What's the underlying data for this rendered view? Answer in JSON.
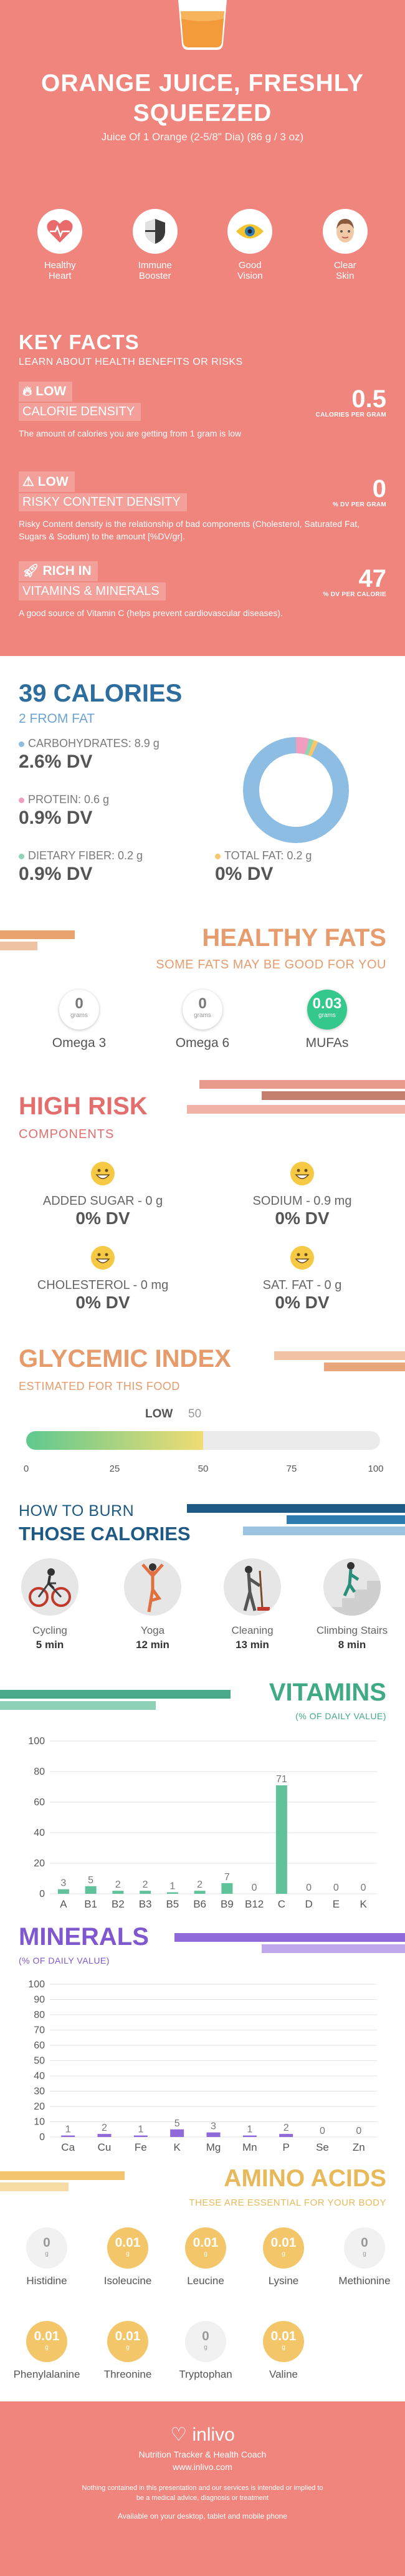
{
  "header": {
    "title_line1": "ORANGE JUICE, FRESHLY",
    "title_line2": "SQUEEZED",
    "subtitle": "Juice Of 1 Orange (2-5/8\" Dia) (86 g / 3 oz)"
  },
  "benefits": [
    {
      "line1": "Healthy",
      "line2": "Heart",
      "icon": "heart-rate-icon"
    },
    {
      "line1": "Immune",
      "line2": "Booster",
      "icon": "shield-icon"
    },
    {
      "line1": "Good",
      "line2": "Vision",
      "icon": "eye-icon"
    },
    {
      "line1": "Clear",
      "line2": "Skin",
      "icon": "skin-icon"
    }
  ],
  "key_facts": {
    "title": "KEY FACTS",
    "subtitle": "LEARN ABOUT HEALTH BENEFITS OR RISKS",
    "facts": [
      {
        "badge": "LOW",
        "label": "CALORIE DENSITY",
        "value": "0.5",
        "unit": "CALORIES PER GRAM",
        "desc": "The amount of calories you are getting from 1 gram is low"
      },
      {
        "badge": "LOW",
        "label": "RISKY CONTENT DENSITY",
        "value": "0",
        "unit": "% DV PER GRAM",
        "desc": "Risky Content density is the relationship of bad components (Cholesterol, Saturated Fat, Sugars & Sodium) to the amount [%DV/gr]."
      },
      {
        "badge": "RICH IN",
        "label": "VITAMINS & MINERALS",
        "value": "47",
        "unit": "% DV PER CALORIE",
        "desc": "A good source of Vitamin C (helps prevent cardiovascular diseases)."
      }
    ]
  },
  "calories": {
    "title": "39 CALORIES",
    "subtitle": "2 FROM FAT",
    "carbs": {
      "label": "CARBOHYDRATES: 8.9 g",
      "dv": "2.6% DV",
      "color": "#8ebde3"
    },
    "protein": {
      "label": "PROTEIN: 0.6 g",
      "dv": "0.9% DV",
      "color": "#f09ec0"
    },
    "fiber": {
      "label": "DIETARY FIBER: 0.2 g",
      "dv": "0.9% DV",
      "color": "#8cd6b5"
    },
    "fat": {
      "label": "TOTAL FAT: 0.2 g",
      "dv": "0% DV",
      "color": "#f7c86b"
    }
  },
  "fats": {
    "title": "HEALTHY FATS",
    "subtitle": "SOME FATS MAY BE GOOD FOR YOU",
    "items": [
      {
        "value": "0",
        "unit": "grams",
        "name": "Omega 3"
      },
      {
        "value": "0",
        "unit": "grams",
        "name": "Omega 6"
      },
      {
        "value": "0.03",
        "unit": "grams",
        "name": "MUFAs"
      }
    ]
  },
  "risk": {
    "title": "HIGH RISK",
    "subtitle": "COMPONENTS",
    "items": [
      {
        "label": "ADDED SUGAR - 0 g",
        "dv": "0% DV"
      },
      {
        "label": "SODIUM - 0.9 mg",
        "dv": "0% DV"
      },
      {
        "label": "CHOLESTEROL - 0 mg",
        "dv": "0% DV"
      },
      {
        "label": "SAT. FAT - 0 g",
        "dv": "0% DV"
      }
    ]
  },
  "glycemic": {
    "title": "GLYCEMIC INDEX",
    "subtitle": "ESTIMATED FOR THIS FOOD",
    "level": "LOW",
    "value": "50",
    "value_num": 50,
    "ticks": [
      "0",
      "25",
      "50",
      "75",
      "100"
    ]
  },
  "burn": {
    "title1": "HOW TO BURN",
    "title2": "THOSE CALORIES",
    "activities": [
      {
        "name": "Cycling",
        "time": "5 min",
        "icon": "cycling-icon"
      },
      {
        "name": "Yoga",
        "time": "12 min",
        "icon": "yoga-icon"
      },
      {
        "name": "Cleaning",
        "time": "13 min",
        "icon": "cleaning-icon"
      },
      {
        "name": "Climbing Stairs",
        "time": "8 min",
        "icon": "stairs-icon"
      }
    ]
  },
  "chart_data": [
    {
      "type": "bar",
      "title": "VITAMINS",
      "subtitle": "(% OF DAILY VALUE)",
      "categories": [
        "A",
        "B1",
        "B2",
        "B3",
        "B5",
        "B6",
        "B9",
        "B12",
        "C",
        "D",
        "E",
        "K"
      ],
      "values": [
        3,
        5,
        2,
        2,
        1,
        2,
        7,
        0,
        71,
        0,
        0,
        0
      ],
      "ylim": [
        0,
        100
      ],
      "yticks": [
        0,
        20,
        40,
        60,
        80,
        100
      ],
      "color": "#5fc29a",
      "grid": true
    },
    {
      "type": "bar",
      "title": "MINERALS",
      "subtitle": "(% OF DAILY VALUE)",
      "categories": [
        "Ca",
        "Cu",
        "Fe",
        "K",
        "Mg",
        "Mn",
        "P",
        "Se",
        "Zn"
      ],
      "values": [
        1,
        2,
        1,
        5,
        3,
        1,
        2,
        0,
        0
      ],
      "ylim": [
        0,
        100
      ],
      "yticks": [
        0,
        10,
        20,
        30,
        40,
        50,
        60,
        70,
        80,
        90,
        100
      ],
      "color": "#8f6ad8",
      "grid": true
    }
  ],
  "amino": {
    "title": "AMINO ACIDS",
    "subtitle": "THESE ARE ESSENTIAL FOR YOUR BODY",
    "items": [
      {
        "value": "0",
        "unit": "g",
        "name": "Histidine"
      },
      {
        "value": "0.01",
        "unit": "g",
        "name": "Isoleucine"
      },
      {
        "value": "0.01",
        "unit": "g",
        "name": "Leucine"
      },
      {
        "value": "0.01",
        "unit": "g",
        "name": "Lysine"
      },
      {
        "value": "0",
        "unit": "g",
        "name": "Methionine"
      },
      {
        "value": "0.01",
        "unit": "g",
        "name": "Phenylalanine"
      },
      {
        "value": "0.01",
        "unit": "g",
        "name": "Threonine"
      },
      {
        "value": "0",
        "unit": "g",
        "name": "Tryptophan"
      },
      {
        "value": "0.01",
        "unit": "g",
        "name": "Valine"
      }
    ]
  },
  "footer": {
    "brand": "inlivo",
    "tagline": "Nutrition Tracker & Health Coach",
    "url": "www.inlivo.com",
    "note": "Nothing contained in this presentation and our services is intended or implied to be a medical advice, diagnosis or treatment",
    "available": "Available on your desktop, tablet and mobile phone"
  }
}
